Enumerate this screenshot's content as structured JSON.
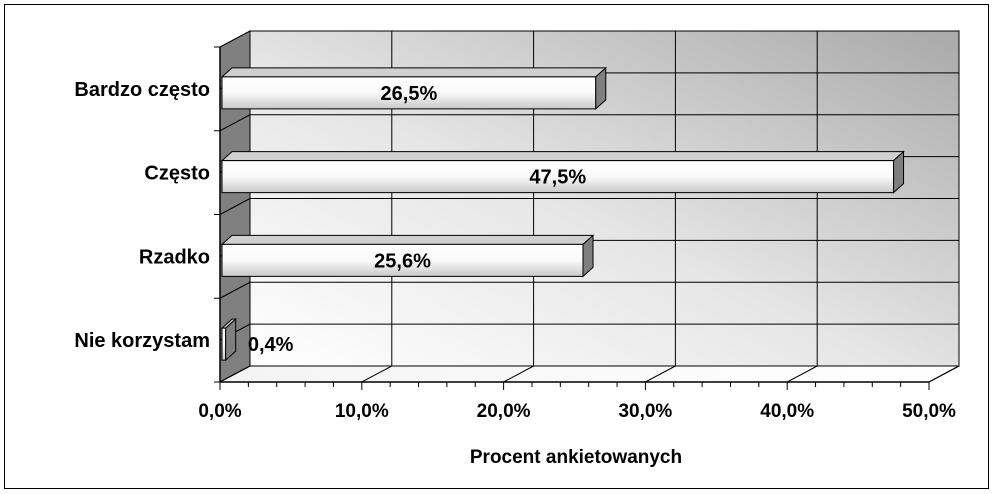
{
  "chart_data": {
    "type": "bar",
    "orientation": "horizontal",
    "style": "3d",
    "title": "",
    "categories": [
      "Bardzo często",
      "Często",
      "Rzadko",
      "Nie korzystam"
    ],
    "series": [
      {
        "values": [
          26.5,
          47.5,
          25.6,
          0.4
        ],
        "labels": [
          "26,5%",
          "47,5%",
          "25,6%",
          "0,4%"
        ]
      }
    ],
    "xlabel": "Procent ankietowanych",
    "ylabel": "",
    "xlim": [
      0,
      50
    ],
    "xticks": [
      0,
      10,
      20,
      30,
      40,
      50
    ],
    "xtick_labels": [
      "0,0%",
      "10,0%",
      "20,0%",
      "30,0%",
      "40,0%",
      "50,0%"
    ],
    "grid": true,
    "legend": "none",
    "colors": {
      "wall": "#d9d9d9",
      "side_wall": "#808080",
      "bar_front": "#ffffff",
      "bar_side": "#7f7f7f",
      "bar_top": "#d0d0d0"
    }
  }
}
